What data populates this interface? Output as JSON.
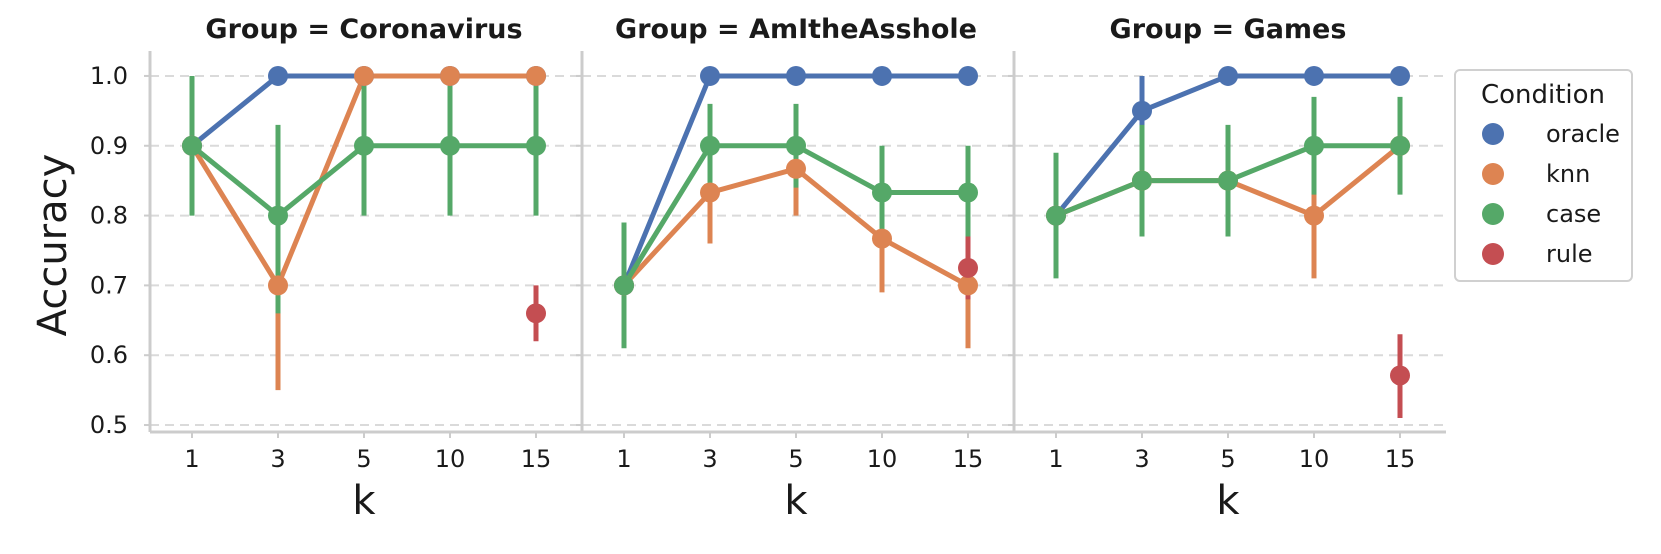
{
  "chart_data": {
    "type": "line",
    "ylabel": "Accuracy",
    "xlabel": "k",
    "x": [
      1,
      3,
      5,
      10,
      15
    ],
    "x_tick_labels": [
      "1",
      "3",
      "5",
      "10",
      "15"
    ],
    "ylim": [
      0.49,
      1.03
    ],
    "y_ticks": [
      0.5,
      0.6,
      0.7,
      0.8,
      0.9,
      1.0
    ],
    "y_tick_labels": [
      "0.5",
      "0.6",
      "0.7",
      "0.8",
      "0.9",
      "1.0"
    ],
    "grid": "horizontal dashed",
    "legend": {
      "title": "Condition",
      "placement": "right",
      "entries": [
        {
          "name": "oracle",
          "color": "#4c72b0"
        },
        {
          "name": "knn",
          "color": "#dd8452"
        },
        {
          "name": "case",
          "color": "#55a868"
        },
        {
          "name": "rule",
          "color": "#c44e52"
        }
      ]
    },
    "panels": [
      {
        "title": "Group = Coronavirus",
        "series": [
          {
            "name": "oracle",
            "color": "#4c72b0",
            "values": [
              0.9,
              1.0,
              1.0,
              1.0,
              1.0
            ],
            "err": [
              null,
              null,
              null,
              null,
              null
            ]
          },
          {
            "name": "knn",
            "color": "#dd8452",
            "values": [
              0.9,
              0.7,
              1.0,
              1.0,
              1.0
            ],
            "err": [
              null,
              [
                0.55,
                0.86
              ],
              null,
              null,
              null
            ]
          },
          {
            "name": "case",
            "color": "#55a868",
            "values": [
              0.9,
              0.8,
              0.9,
              0.9,
              0.9
            ],
            "err": [
              [
                0.8,
                1.0
              ],
              [
                0.66,
                0.93
              ],
              [
                0.8,
                1.0
              ],
              [
                0.8,
                1.0
              ],
              [
                0.8,
                1.0
              ]
            ]
          },
          {
            "name": "rule",
            "color": "#c44e52",
            "values": [
              null,
              null,
              null,
              null,
              0.66
            ],
            "err": [
              null,
              null,
              null,
              null,
              [
                0.62,
                0.7
              ]
            ]
          }
        ]
      },
      {
        "title": "Group = AmItheAsshole",
        "series": [
          {
            "name": "oracle",
            "color": "#4c72b0",
            "values": [
              0.7,
              1.0,
              1.0,
              1.0,
              1.0
            ],
            "err": [
              null,
              null,
              null,
              null,
              null
            ]
          },
          {
            "name": "knn",
            "color": "#dd8452",
            "values": [
              0.7,
              0.833,
              0.867,
              0.767,
              0.7
            ],
            "err": [
              null,
              [
                0.76,
                0.9
              ],
              [
                0.8,
                0.93
              ],
              [
                0.69,
                0.83
              ],
              [
                0.61,
                0.77
              ]
            ]
          },
          {
            "name": "case",
            "color": "#55a868",
            "values": [
              0.7,
              0.9,
              0.9,
              0.833,
              0.833
            ],
            "err": [
              [
                0.61,
                0.79
              ],
              [
                0.83,
                0.96
              ],
              [
                0.84,
                0.96
              ],
              [
                0.76,
                0.9
              ],
              [
                0.76,
                0.9
              ]
            ]
          },
          {
            "name": "rule",
            "color": "#c44e52",
            "values": [
              null,
              null,
              null,
              null,
              0.725
            ],
            "err": [
              null,
              null,
              null,
              null,
              [
                0.68,
                0.77
              ]
            ]
          }
        ]
      },
      {
        "title": "Group = Games",
        "series": [
          {
            "name": "oracle",
            "color": "#4c72b0",
            "values": [
              0.8,
              0.95,
              1.0,
              1.0,
              1.0
            ],
            "err": [
              null,
              [
                0.9,
                1.0
              ],
              null,
              null,
              null
            ]
          },
          {
            "name": "knn",
            "color": "#dd8452",
            "values": [
              0.8,
              0.85,
              0.85,
              0.8,
              0.9
            ],
            "err": [
              null,
              null,
              null,
              [
                0.71,
                0.89
              ],
              null
            ]
          },
          {
            "name": "case",
            "color": "#55a868",
            "values": [
              0.8,
              0.85,
              0.85,
              0.9,
              0.9
            ],
            "err": [
              [
                0.71,
                0.89
              ],
              [
                0.77,
                0.93
              ],
              [
                0.77,
                0.93
              ],
              [
                0.83,
                0.97
              ],
              [
                0.83,
                0.97
              ]
            ]
          },
          {
            "name": "rule",
            "color": "#c44e52",
            "values": [
              null,
              null,
              null,
              null,
              0.571
            ],
            "err": [
              null,
              null,
              null,
              null,
              [
                0.51,
                0.63
              ]
            ]
          }
        ]
      }
    ]
  }
}
